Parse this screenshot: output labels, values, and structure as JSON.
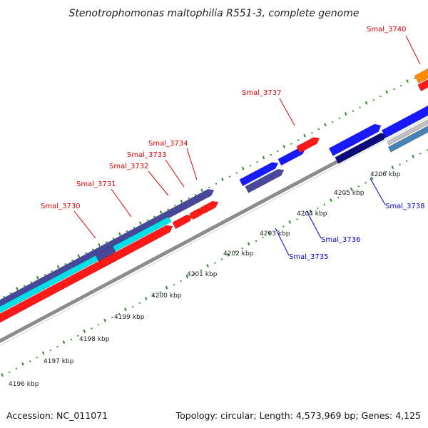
{
  "title": "Stenotrophomonas maltophilia R551-3, complete genome",
  "footer": {
    "accession": "Accession: NC_011071",
    "summary": "Topology: circular; Length: 4,573,969 bp; Genes: 4,125"
  },
  "colors": {
    "backbone": "#8c8c8c",
    "tick": "#228b22",
    "label_forward": "#e00000",
    "label_reverse": "#0000cc",
    "gene_red": "#ff1a1a",
    "gene_cyan": "#00e0e8",
    "gene_slate": "#48489a",
    "gene_blue": "#1a1aff",
    "gene_navy": "#0a0a7a",
    "gene_orange": "#ff8c00",
    "gene_steel": "#4a82b4",
    "gene_silver": "#c0c0c0"
  },
  "scale_ticks": [
    {
      "label": "4196 kbp",
      "kbp": 4196
    },
    {
      "label": "4197 kbp",
      "kbp": 4197
    },
    {
      "label": "4198 kbp",
      "kbp": 4198
    },
    {
      "label": "4199 kbp",
      "kbp": 4199
    },
    {
      "label": "4200 kbp",
      "kbp": 4200
    },
    {
      "label": "4201 kbp",
      "kbp": 4201
    },
    {
      "label": "4202 kbp",
      "kbp": 4202
    },
    {
      "label": "4203 kbp",
      "kbp": 4203
    },
    {
      "label": "4204 kbp",
      "kbp": 4204
    },
    {
      "label": "4205 kbp",
      "kbp": 4205
    },
    {
      "label": "4206 kbp",
      "kbp": 4206
    }
  ],
  "genes": [
    {
      "label": "Smal_3730",
      "strand": "forward"
    },
    {
      "label": "Smal_3731",
      "strand": "forward"
    },
    {
      "label": "Smal_3732",
      "strand": "forward"
    },
    {
      "label": "Smal_3733",
      "strand": "forward"
    },
    {
      "label": "Smal_3734",
      "strand": "forward"
    },
    {
      "label": "Smal_3735",
      "strand": "reverse"
    },
    {
      "label": "Smal_3736",
      "strand": "reverse"
    },
    {
      "label": "Smal_3737",
      "strand": "forward"
    },
    {
      "label": "Smal_3738",
      "strand": "reverse"
    },
    {
      "label": "Smal_3740",
      "strand": "forward"
    }
  ]
}
